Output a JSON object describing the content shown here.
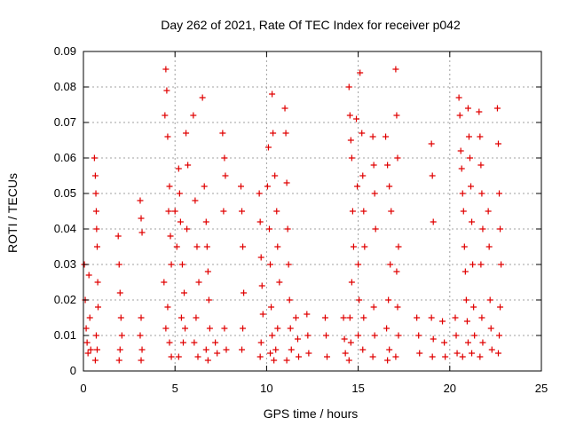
{
  "chart_data": {
    "type": "scatter",
    "title": "Day 262 of 2021, Rate Of TEC Index for receiver p042",
    "xlabel": "GPS time / hours",
    "ylabel": "ROTI / TECUs",
    "xlim": [
      0,
      25
    ],
    "ylim": [
      0,
      0.09
    ],
    "xticks": [
      "0",
      "5",
      "10",
      "15",
      "20",
      "25"
    ],
    "yticks": [
      "0",
      "0.01",
      "0.02",
      "0.03",
      "0.04",
      "0.05",
      "0.06",
      "0.07",
      "0.08",
      "0.09"
    ],
    "grid": true,
    "marker": "plus",
    "color": "#e00000",
    "series": [
      {
        "values": [
          [
            0.05,
            0.03
          ],
          [
            0.1,
            0.02
          ],
          [
            0.15,
            0.012
          ],
          [
            0.2,
            0.008
          ],
          [
            0.25,
            0.005
          ],
          [
            0.3,
            0.027
          ],
          [
            0.35,
            0.015
          ],
          [
            0.4,
            0.006
          ],
          [
            0.6,
            0.06
          ],
          [
            0.65,
            0.055
          ],
          [
            0.68,
            0.05
          ],
          [
            0.7,
            0.045
          ],
          [
            0.72,
            0.04
          ],
          [
            0.75,
            0.035
          ],
          [
            0.78,
            0.025
          ],
          [
            0.8,
            0.018
          ],
          [
            0.7,
            0.01
          ],
          [
            0.75,
            0.006
          ],
          [
            0.65,
            0.003
          ],
          [
            1.9,
            0.038
          ],
          [
            1.95,
            0.03
          ],
          [
            2.0,
            0.022
          ],
          [
            2.05,
            0.015
          ],
          [
            2.1,
            0.01
          ],
          [
            2.0,
            0.006
          ],
          [
            1.95,
            0.003
          ],
          [
            3.1,
            0.048
          ],
          [
            3.15,
            0.043
          ],
          [
            3.2,
            0.039
          ],
          [
            3.15,
            0.015
          ],
          [
            3.1,
            0.01
          ],
          [
            3.2,
            0.006
          ],
          [
            3.15,
            0.003
          ],
          [
            4.5,
            0.085
          ],
          [
            4.55,
            0.079
          ],
          [
            4.45,
            0.072
          ],
          [
            4.6,
            0.066
          ],
          [
            4.7,
            0.052
          ],
          [
            4.65,
            0.045
          ],
          [
            4.75,
            0.038
          ],
          [
            4.8,
            0.03
          ],
          [
            4.4,
            0.025
          ],
          [
            4.6,
            0.018
          ],
          [
            4.5,
            0.012
          ],
          [
            4.7,
            0.008
          ],
          [
            4.8,
            0.004
          ],
          [
            5.0,
            0.045
          ],
          [
            5.1,
            0.035
          ],
          [
            5.2,
            0.057
          ],
          [
            5.25,
            0.05
          ],
          [
            5.3,
            0.042
          ],
          [
            5.4,
            0.03
          ],
          [
            5.5,
            0.022
          ],
          [
            5.35,
            0.015
          ],
          [
            5.45,
            0.008
          ],
          [
            5.2,
            0.004
          ],
          [
            5.6,
            0.067
          ],
          [
            5.7,
            0.058
          ],
          [
            5.65,
            0.04
          ],
          [
            5.55,
            0.012
          ],
          [
            6.0,
            0.072
          ],
          [
            6.1,
            0.048
          ],
          [
            6.2,
            0.035
          ],
          [
            6.3,
            0.025
          ],
          [
            6.15,
            0.015
          ],
          [
            6.05,
            0.008
          ],
          [
            6.25,
            0.004
          ],
          [
            6.5,
            0.077
          ],
          [
            6.6,
            0.052
          ],
          [
            6.7,
            0.042
          ],
          [
            6.75,
            0.035
          ],
          [
            6.8,
            0.028
          ],
          [
            6.85,
            0.02
          ],
          [
            6.9,
            0.012
          ],
          [
            6.7,
            0.006
          ],
          [
            6.8,
            0.003
          ],
          [
            7.2,
            0.008
          ],
          [
            7.3,
            0.005
          ],
          [
            7.6,
            0.067
          ],
          [
            7.7,
            0.06
          ],
          [
            7.75,
            0.055
          ],
          [
            7.65,
            0.045
          ],
          [
            7.7,
            0.012
          ],
          [
            7.8,
            0.006
          ],
          [
            8.6,
            0.052
          ],
          [
            8.65,
            0.045
          ],
          [
            8.7,
            0.035
          ],
          [
            8.75,
            0.022
          ],
          [
            8.7,
            0.012
          ],
          [
            8.65,
            0.006
          ],
          [
            9.6,
            0.05
          ],
          [
            9.65,
            0.042
          ],
          [
            9.7,
            0.032
          ],
          [
            9.75,
            0.024
          ],
          [
            9.8,
            0.016
          ],
          [
            9.7,
            0.008
          ],
          [
            9.65,
            0.004
          ],
          [
            10.1,
            0.063
          ],
          [
            10.05,
            0.052
          ],
          [
            10.15,
            0.04
          ],
          [
            10.2,
            0.03
          ],
          [
            10.25,
            0.018
          ],
          [
            10.3,
            0.01
          ],
          [
            10.2,
            0.005
          ],
          [
            10.3,
            0.078
          ],
          [
            10.35,
            0.067
          ],
          [
            10.45,
            0.055
          ],
          [
            10.55,
            0.045
          ],
          [
            10.6,
            0.035
          ],
          [
            10.7,
            0.025
          ],
          [
            10.6,
            0.012
          ],
          [
            10.5,
            0.006
          ],
          [
            10.4,
            0.003
          ],
          [
            11.0,
            0.074
          ],
          [
            11.05,
            0.067
          ],
          [
            11.1,
            0.053
          ],
          [
            11.15,
            0.04
          ],
          [
            11.2,
            0.03
          ],
          [
            11.25,
            0.02
          ],
          [
            11.3,
            0.012
          ],
          [
            11.35,
            0.006
          ],
          [
            11.1,
            0.003
          ],
          [
            11.6,
            0.015
          ],
          [
            11.7,
            0.009
          ],
          [
            11.75,
            0.004
          ],
          [
            12.2,
            0.016
          ],
          [
            12.25,
            0.01
          ],
          [
            12.3,
            0.005
          ],
          [
            13.2,
            0.015
          ],
          [
            13.25,
            0.01
          ],
          [
            13.3,
            0.004
          ],
          [
            14.2,
            0.015
          ],
          [
            14.25,
            0.009
          ],
          [
            14.3,
            0.005
          ],
          [
            14.5,
            0.08
          ],
          [
            14.55,
            0.072
          ],
          [
            14.6,
            0.065
          ],
          [
            14.65,
            0.06
          ],
          [
            14.7,
            0.045
          ],
          [
            14.75,
            0.035
          ],
          [
            14.65,
            0.025
          ],
          [
            14.55,
            0.015
          ],
          [
            14.6,
            0.008
          ],
          [
            14.5,
            0.003
          ],
          [
            14.9,
            0.071
          ],
          [
            14.95,
            0.052
          ],
          [
            15.0,
            0.03
          ],
          [
            15.05,
            0.02
          ],
          [
            15.0,
            0.01
          ],
          [
            15.1,
            0.084
          ],
          [
            15.2,
            0.067
          ],
          [
            15.25,
            0.055
          ],
          [
            15.3,
            0.045
          ],
          [
            15.35,
            0.035
          ],
          [
            15.3,
            0.015
          ],
          [
            15.25,
            0.006
          ],
          [
            15.8,
            0.066
          ],
          [
            15.85,
            0.058
          ],
          [
            15.9,
            0.05
          ],
          [
            15.95,
            0.04
          ],
          [
            15.85,
            0.018
          ],
          [
            15.9,
            0.01
          ],
          [
            15.8,
            0.004
          ],
          [
            16.5,
            0.066
          ],
          [
            16.6,
            0.058
          ],
          [
            16.7,
            0.052
          ],
          [
            16.8,
            0.045
          ],
          [
            16.75,
            0.03
          ],
          [
            16.65,
            0.02
          ],
          [
            16.55,
            0.012
          ],
          [
            16.7,
            0.006
          ],
          [
            16.6,
            0.003
          ],
          [
            17.05,
            0.085
          ],
          [
            17.1,
            0.072
          ],
          [
            17.15,
            0.06
          ],
          [
            17.2,
            0.035
          ],
          [
            17.1,
            0.028
          ],
          [
            17.15,
            0.018
          ],
          [
            17.2,
            0.01
          ],
          [
            17.05,
            0.004
          ],
          [
            18.2,
            0.015
          ],
          [
            18.3,
            0.01
          ],
          [
            18.35,
            0.005
          ],
          [
            19.0,
            0.064
          ],
          [
            19.05,
            0.055
          ],
          [
            19.1,
            0.042
          ],
          [
            19.0,
            0.015
          ],
          [
            19.1,
            0.009
          ],
          [
            19.05,
            0.004
          ],
          [
            19.6,
            0.014
          ],
          [
            19.7,
            0.008
          ],
          [
            19.75,
            0.004
          ],
          [
            20.3,
            0.015
          ],
          [
            20.35,
            0.01
          ],
          [
            20.4,
            0.005
          ],
          [
            20.5,
            0.077
          ],
          [
            20.55,
            0.072
          ],
          [
            20.6,
            0.062
          ],
          [
            20.65,
            0.057
          ],
          [
            20.7,
            0.05
          ],
          [
            20.75,
            0.045
          ],
          [
            20.8,
            0.035
          ],
          [
            20.85,
            0.028
          ],
          [
            20.9,
            0.02
          ],
          [
            20.95,
            0.014
          ],
          [
            21.0,
            0.008
          ],
          [
            20.7,
            0.004
          ],
          [
            21.0,
            0.074
          ],
          [
            21.05,
            0.066
          ],
          [
            21.1,
            0.06
          ],
          [
            21.15,
            0.052
          ],
          [
            21.2,
            0.042
          ],
          [
            21.25,
            0.03
          ],
          [
            21.3,
            0.018
          ],
          [
            21.35,
            0.01
          ],
          [
            21.2,
            0.005
          ],
          [
            21.6,
            0.073
          ],
          [
            21.65,
            0.066
          ],
          [
            21.7,
            0.058
          ],
          [
            21.75,
            0.05
          ],
          [
            21.8,
            0.04
          ],
          [
            21.7,
            0.03
          ],
          [
            21.75,
            0.015
          ],
          [
            21.8,
            0.008
          ],
          [
            21.65,
            0.004
          ],
          [
            22.1,
            0.045
          ],
          [
            22.15,
            0.035
          ],
          [
            22.2,
            0.02
          ],
          [
            22.25,
            0.012
          ],
          [
            22.3,
            0.006
          ],
          [
            22.6,
            0.074
          ],
          [
            22.65,
            0.064
          ],
          [
            22.7,
            0.05
          ],
          [
            22.75,
            0.04
          ],
          [
            22.8,
            0.03
          ],
          [
            22.75,
            0.018
          ],
          [
            22.7,
            0.01
          ],
          [
            22.65,
            0.005
          ]
        ]
      }
    ]
  }
}
